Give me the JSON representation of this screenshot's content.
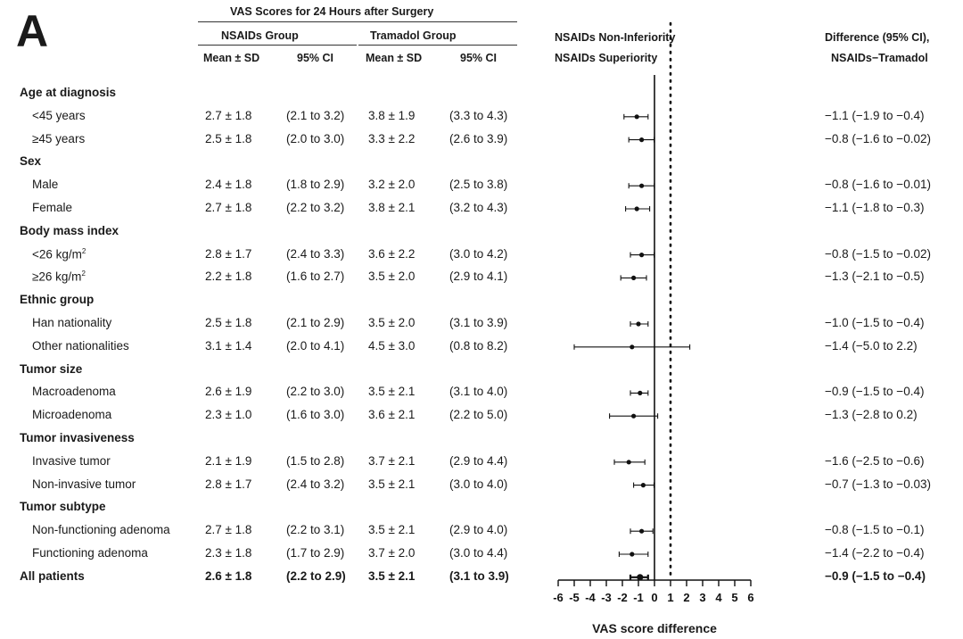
{
  "panel_label": "A",
  "header": {
    "vas_title": "VAS Scores for 24 Hours after Surgery",
    "nsaids_group": "NSAIDs Group",
    "tramadol_group": "Tramadol Group",
    "mean_sd_1": "Mean ± SD",
    "ci_1": "95% CI",
    "mean_sd_2": "Mean ± SD",
    "ci_2": "95% CI",
    "noninferiority": "NSAIDs Non-Inferiority",
    "superiority": "NSAIDs Superiority",
    "diff_title": "Difference (95% CI),",
    "diff_sub": "NSAIDs−Tramadol"
  },
  "rows": [
    {
      "type": "group",
      "label": "Age at diagnosis"
    },
    {
      "type": "sub",
      "label": "<45 years",
      "n_mean": "2.7 ± 1.8",
      "n_ci": "(2.1 to 3.2)",
      "t_mean": "3.8 ± 1.9",
      "t_ci": "(3.3 to 4.3)",
      "diff": "−1.1 (−1.9 to −0.4)"
    },
    {
      "type": "sub",
      "label": "≥45 years",
      "n_mean": "2.5 ± 1.8",
      "n_ci": "(2.0 to 3.0)",
      "t_mean": "3.3 ± 2.2",
      "t_ci": "(2.6 to 3.9)",
      "diff": "−0.8 (−1.6 to −0.02)"
    },
    {
      "type": "group",
      "label": "Sex"
    },
    {
      "type": "sub",
      "label": "Male",
      "n_mean": "2.4 ± 1.8",
      "n_ci": "(1.8 to 2.9)",
      "t_mean": "3.2 ± 2.0",
      "t_ci": "(2.5 to 3.8)",
      "diff": "−0.8 (−1.6 to −0.01)"
    },
    {
      "type": "sub",
      "label": "Female",
      "n_mean": "2.7 ± 1.8",
      "n_ci": "(2.2 to 3.2)",
      "t_mean": "3.8 ± 2.1",
      "t_ci": "(3.2 to 4.3)",
      "diff": "−1.1 (−1.8 to −0.3)"
    },
    {
      "type": "group",
      "label": "Body mass index"
    },
    {
      "type": "sub",
      "label": "<26 kg/m",
      "sup": "2",
      "n_mean": "2.8 ± 1.7",
      "n_ci": "(2.4 to 3.3)",
      "t_mean": "3.6 ± 2.2",
      "t_ci": "(3.0 to 4.2)",
      "diff": "−0.8 (−1.5 to −0.02)"
    },
    {
      "type": "sub",
      "label": "≥26 kg/m",
      "sup": "2",
      "n_mean": "2.2 ± 1.8",
      "n_ci": "(1.6 to 2.7)",
      "t_mean": "3.5 ± 2.0",
      "t_ci": "(2.9 to 4.1)",
      "diff": "−1.3 (−2.1 to −0.5)"
    },
    {
      "type": "group",
      "label": "Ethnic group"
    },
    {
      "type": "sub",
      "label": "Han nationality",
      "n_mean": "2.5 ± 1.8",
      "n_ci": "(2.1 to 2.9)",
      "t_mean": "3.5 ± 2.0",
      "t_ci": "(3.1 to 3.9)",
      "diff": "−1.0 (−1.5 to −0.4)"
    },
    {
      "type": "sub",
      "label": "Other nationalities",
      "n_mean": "3.1 ± 1.4",
      "n_ci": "(2.0 to 4.1)",
      "t_mean": "4.5 ± 3.0",
      "t_ci": "(0.8 to 8.2)",
      "diff": "−1.4 (−5.0 to 2.2)"
    },
    {
      "type": "group",
      "label": "Tumor size"
    },
    {
      "type": "sub",
      "label": "Macroadenoma",
      "n_mean": "2.6 ± 1.9",
      "n_ci": "(2.2 to 3.0)",
      "t_mean": "3.5 ± 2.1",
      "t_ci": "(3.1 to 4.0)",
      "diff": "−0.9 (−1.5 to −0.4)"
    },
    {
      "type": "sub",
      "label": "Microadenoma",
      "n_mean": "2.3 ± 1.0",
      "n_ci": "(1.6 to 3.0)",
      "t_mean": "3.6 ± 2.1",
      "t_ci": "(2.2 to 5.0)",
      "diff": "−1.3 (−2.8 to 0.2)"
    },
    {
      "type": "group",
      "label": "Tumor invasiveness"
    },
    {
      "type": "sub",
      "label": "Invasive tumor",
      "n_mean": "2.1 ± 1.9",
      "n_ci": "(1.5 to 2.8)",
      "t_mean": "3.7 ± 2.1",
      "t_ci": "(2.9 to 4.4)",
      "diff": "−1.6 (−2.5 to −0.6)"
    },
    {
      "type": "sub",
      "label": "Non-invasive tumor",
      "n_mean": "2.8 ± 1.7",
      "n_ci": "(2.4 to 3.2)",
      "t_mean": "3.5 ± 2.1",
      "t_ci": "(3.0 to 4.0)",
      "diff": "−0.7 (−1.3 to −0.03)"
    },
    {
      "type": "group",
      "label": "Tumor subtype"
    },
    {
      "type": "sub",
      "label": "Non-functioning adenoma",
      "n_mean": "2.7 ± 1.8",
      "n_ci": "(2.2 to 3.1)",
      "t_mean": "3.5 ± 2.1",
      "t_ci": "(2.9 to 4.0)",
      "diff": "−0.8 (−1.5 to −0.1)"
    },
    {
      "type": "sub",
      "label": "Functioning adenoma",
      "n_mean": "2.3 ± 1.8",
      "n_ci": "(1.7 to 2.9)",
      "t_mean": "3.7 ± 2.0",
      "t_ci": "(3.0 to 4.4)",
      "diff": "−1.4 (−2.2 to −0.4)"
    },
    {
      "type": "total",
      "label": "All patients",
      "n_mean": "2.6 ± 1.8",
      "n_ci": "(2.2 to 2.9)",
      "t_mean": "3.5 ± 2.1",
      "t_ci": "(3.1 to 3.9)",
      "diff": "−0.9 (−1.5 to −0.4)"
    }
  ],
  "chart_data": {
    "type": "forest",
    "xlabel": "VAS score difference",
    "xlim": [
      -6,
      6
    ],
    "x_ticks": [
      "-6",
      "-5",
      "-4",
      "-3",
      "-2",
      "-1",
      "0",
      "1",
      "2",
      "3",
      "4",
      "5",
      "6"
    ],
    "null_line": 0,
    "noninferiority_margin": 1,
    "estimates": [
      {
        "label": "<45 years",
        "est": -1.1,
        "lo": -1.9,
        "hi": -0.4
      },
      {
        "label": "≥45 years",
        "est": -0.8,
        "lo": -1.6,
        "hi": -0.02
      },
      {
        "label": "Male",
        "est": -0.8,
        "lo": -1.6,
        "hi": -0.01
      },
      {
        "label": "Female",
        "est": -1.1,
        "lo": -1.8,
        "hi": -0.3
      },
      {
        "label": "<26 kg/m2",
        "est": -0.8,
        "lo": -1.5,
        "hi": -0.02
      },
      {
        "label": "≥26 kg/m2",
        "est": -1.3,
        "lo": -2.1,
        "hi": -0.5
      },
      {
        "label": "Han nationality",
        "est": -1.0,
        "lo": -1.5,
        "hi": -0.4
      },
      {
        "label": "Other nationalities",
        "est": -1.4,
        "lo": -5.0,
        "hi": 2.2
      },
      {
        "label": "Macroadenoma",
        "est": -0.9,
        "lo": -1.5,
        "hi": -0.4
      },
      {
        "label": "Microadenoma",
        "est": -1.3,
        "lo": -2.8,
        "hi": 0.2
      },
      {
        "label": "Invasive tumor",
        "est": -1.6,
        "lo": -2.5,
        "hi": -0.6
      },
      {
        "label": "Non-invasive tumor",
        "est": -0.7,
        "lo": -1.3,
        "hi": -0.03
      },
      {
        "label": "Non-functioning adenoma",
        "est": -0.8,
        "lo": -1.5,
        "hi": -0.1
      },
      {
        "label": "Functioning adenoma",
        "est": -1.4,
        "lo": -2.2,
        "hi": -0.4
      },
      {
        "label": "All patients",
        "est": -0.9,
        "lo": -1.5,
        "hi": -0.4,
        "bold": true
      }
    ]
  }
}
